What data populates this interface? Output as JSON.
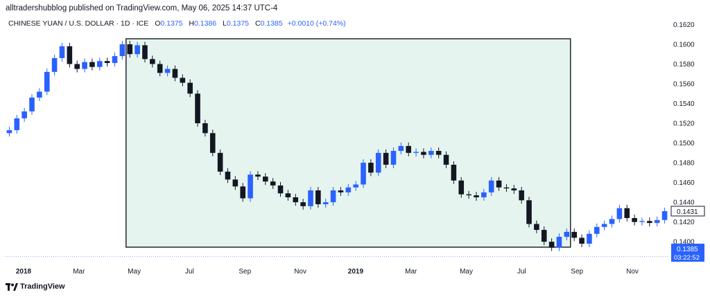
{
  "attribution": "alltradershubblog published on TradingView.com, May 06, 2025 14:37 UTC-4",
  "header": {
    "symbol": "CHINESE YUAN / U.S. DOLLAR · 1D · ICE",
    "open_label": "O",
    "open": "0.1375",
    "high_label": "H",
    "high": "0.1386",
    "low_label": "L",
    "low": "0.1375",
    "close_label": "C",
    "close": "0.1385",
    "change": "+0.0010 (+0.74%)"
  },
  "chart_data": {
    "type": "candlestick",
    "ylim": [
      0.1384,
      0.1628
    ],
    "y_ticks": [
      "0.1620",
      "0.1600",
      "0.1580",
      "0.1560",
      "0.1540",
      "0.1520",
      "0.1500",
      "0.1480",
      "0.1460",
      "0.1440",
      "0.1420",
      "0.1400"
    ],
    "x_ticks": [
      {
        "label": "2018",
        "bold": true
      },
      {
        "label": "Mar"
      },
      {
        "label": "May"
      },
      {
        "label": "Jul"
      },
      {
        "label": "Sep"
      },
      {
        "label": "Nov"
      },
      {
        "label": "2019",
        "bold": true
      },
      {
        "label": "Mar"
      },
      {
        "label": "May"
      },
      {
        "label": "Jul"
      },
      {
        "label": "Sep"
      },
      {
        "label": "Nov"
      }
    ],
    "series": [
      {
        "values": [
          [
            0.151,
            0.1513
          ],
          [
            0.1513,
            0.1525
          ],
          [
            0.1525,
            0.1532
          ],
          [
            0.1532,
            0.1546
          ],
          [
            0.1546,
            0.1552
          ],
          [
            0.1552,
            0.1572
          ],
          [
            0.1572,
            0.1586
          ],
          [
            0.1586,
            0.1598
          ],
          [
            0.1598,
            0.158
          ],
          [
            0.158,
            0.1575
          ],
          [
            0.1575,
            0.1582
          ],
          [
            0.1582,
            0.1577
          ],
          [
            0.1577,
            0.1583
          ],
          [
            0.1583,
            0.1581
          ],
          [
            0.1581,
            0.1588
          ],
          [
            0.1588,
            0.16
          ],
          [
            0.16,
            0.159
          ],
          [
            0.159,
            0.1599
          ],
          [
            0.1599,
            0.1585
          ],
          [
            0.1585,
            0.158
          ],
          [
            0.158,
            0.1571
          ],
          [
            0.1571,
            0.1575
          ],
          [
            0.1575,
            0.1566
          ],
          [
            0.1566,
            0.1561
          ],
          [
            0.1561,
            0.155
          ],
          [
            0.155,
            0.152
          ],
          [
            0.152,
            0.151
          ],
          [
            0.151,
            0.149
          ],
          [
            0.149,
            0.1471
          ],
          [
            0.1471,
            0.1463
          ],
          [
            0.1463,
            0.1456
          ],
          [
            0.1456,
            0.1444
          ],
          [
            0.1444,
            0.1468
          ],
          [
            0.1468,
            0.1466
          ],
          [
            0.1466,
            0.1461
          ],
          [
            0.1461,
            0.1457
          ],
          [
            0.1457,
            0.1449
          ],
          [
            0.1449,
            0.1445
          ],
          [
            0.1445,
            0.144
          ],
          [
            0.144,
            0.1436
          ],
          [
            0.1436,
            0.1452
          ],
          [
            0.1452,
            0.1438
          ],
          [
            0.1438,
            0.144
          ],
          [
            0.144,
            0.1452
          ],
          [
            0.1452,
            0.145
          ],
          [
            0.145,
            0.1455
          ],
          [
            0.1455,
            0.1458
          ],
          [
            0.1458,
            0.148
          ],
          [
            0.148,
            0.147
          ],
          [
            0.147,
            0.149
          ],
          [
            0.149,
            0.1478
          ],
          [
            0.1478,
            0.1492
          ],
          [
            0.1492,
            0.1497
          ],
          [
            0.1497,
            0.149
          ],
          [
            0.149,
            0.1491
          ],
          [
            0.1491,
            0.1488
          ],
          [
            0.1488,
            0.1492
          ],
          [
            0.1492,
            0.1488
          ],
          [
            0.1488,
            0.1478
          ],
          [
            0.1478,
            0.1462
          ],
          [
            0.1462,
            0.1448
          ],
          [
            0.1448,
            0.1447
          ],
          [
            0.1447,
            0.1445
          ],
          [
            0.1445,
            0.145
          ],
          [
            0.145,
            0.1462
          ],
          [
            0.1462,
            0.1455
          ],
          [
            0.1455,
            0.1454
          ],
          [
            0.1454,
            0.1452
          ],
          [
            0.1452,
            0.1442
          ],
          [
            0.1442,
            0.1418
          ],
          [
            0.1418,
            0.1412
          ],
          [
            0.1412,
            0.14
          ],
          [
            0.14,
            0.1394
          ],
          [
            0.1394,
            0.1405
          ],
          [
            0.1405,
            0.141
          ],
          [
            0.141,
            0.1404
          ],
          [
            0.1404,
            0.1398
          ],
          [
            0.1398,
            0.1408
          ],
          [
            0.1408,
            0.1415
          ],
          [
            0.1415,
            0.1418
          ],
          [
            0.1418,
            0.1423
          ],
          [
            0.1423,
            0.1434
          ],
          [
            0.1434,
            0.1424
          ],
          [
            0.1424,
            0.142
          ],
          [
            0.142,
            0.1421
          ],
          [
            0.1421,
            0.1419
          ],
          [
            0.1419,
            0.1422
          ],
          [
            0.1422,
            0.1431
          ]
        ]
      }
    ],
    "highlight_box": {
      "from_index": 16,
      "to_index": 74
    },
    "last_price": {
      "value": "0.1431"
    },
    "current_price": {
      "value": "0.1385",
      "countdown": "03:22:52",
      "level": 0.1385
    },
    "colors": {
      "up": "#2962ff",
      "down": "#131722",
      "box_fill": "#e6f4ef",
      "box_stroke": "#131722",
      "price_tag": "#2962ff"
    }
  },
  "footer": {
    "logo_text": "TradingView"
  }
}
